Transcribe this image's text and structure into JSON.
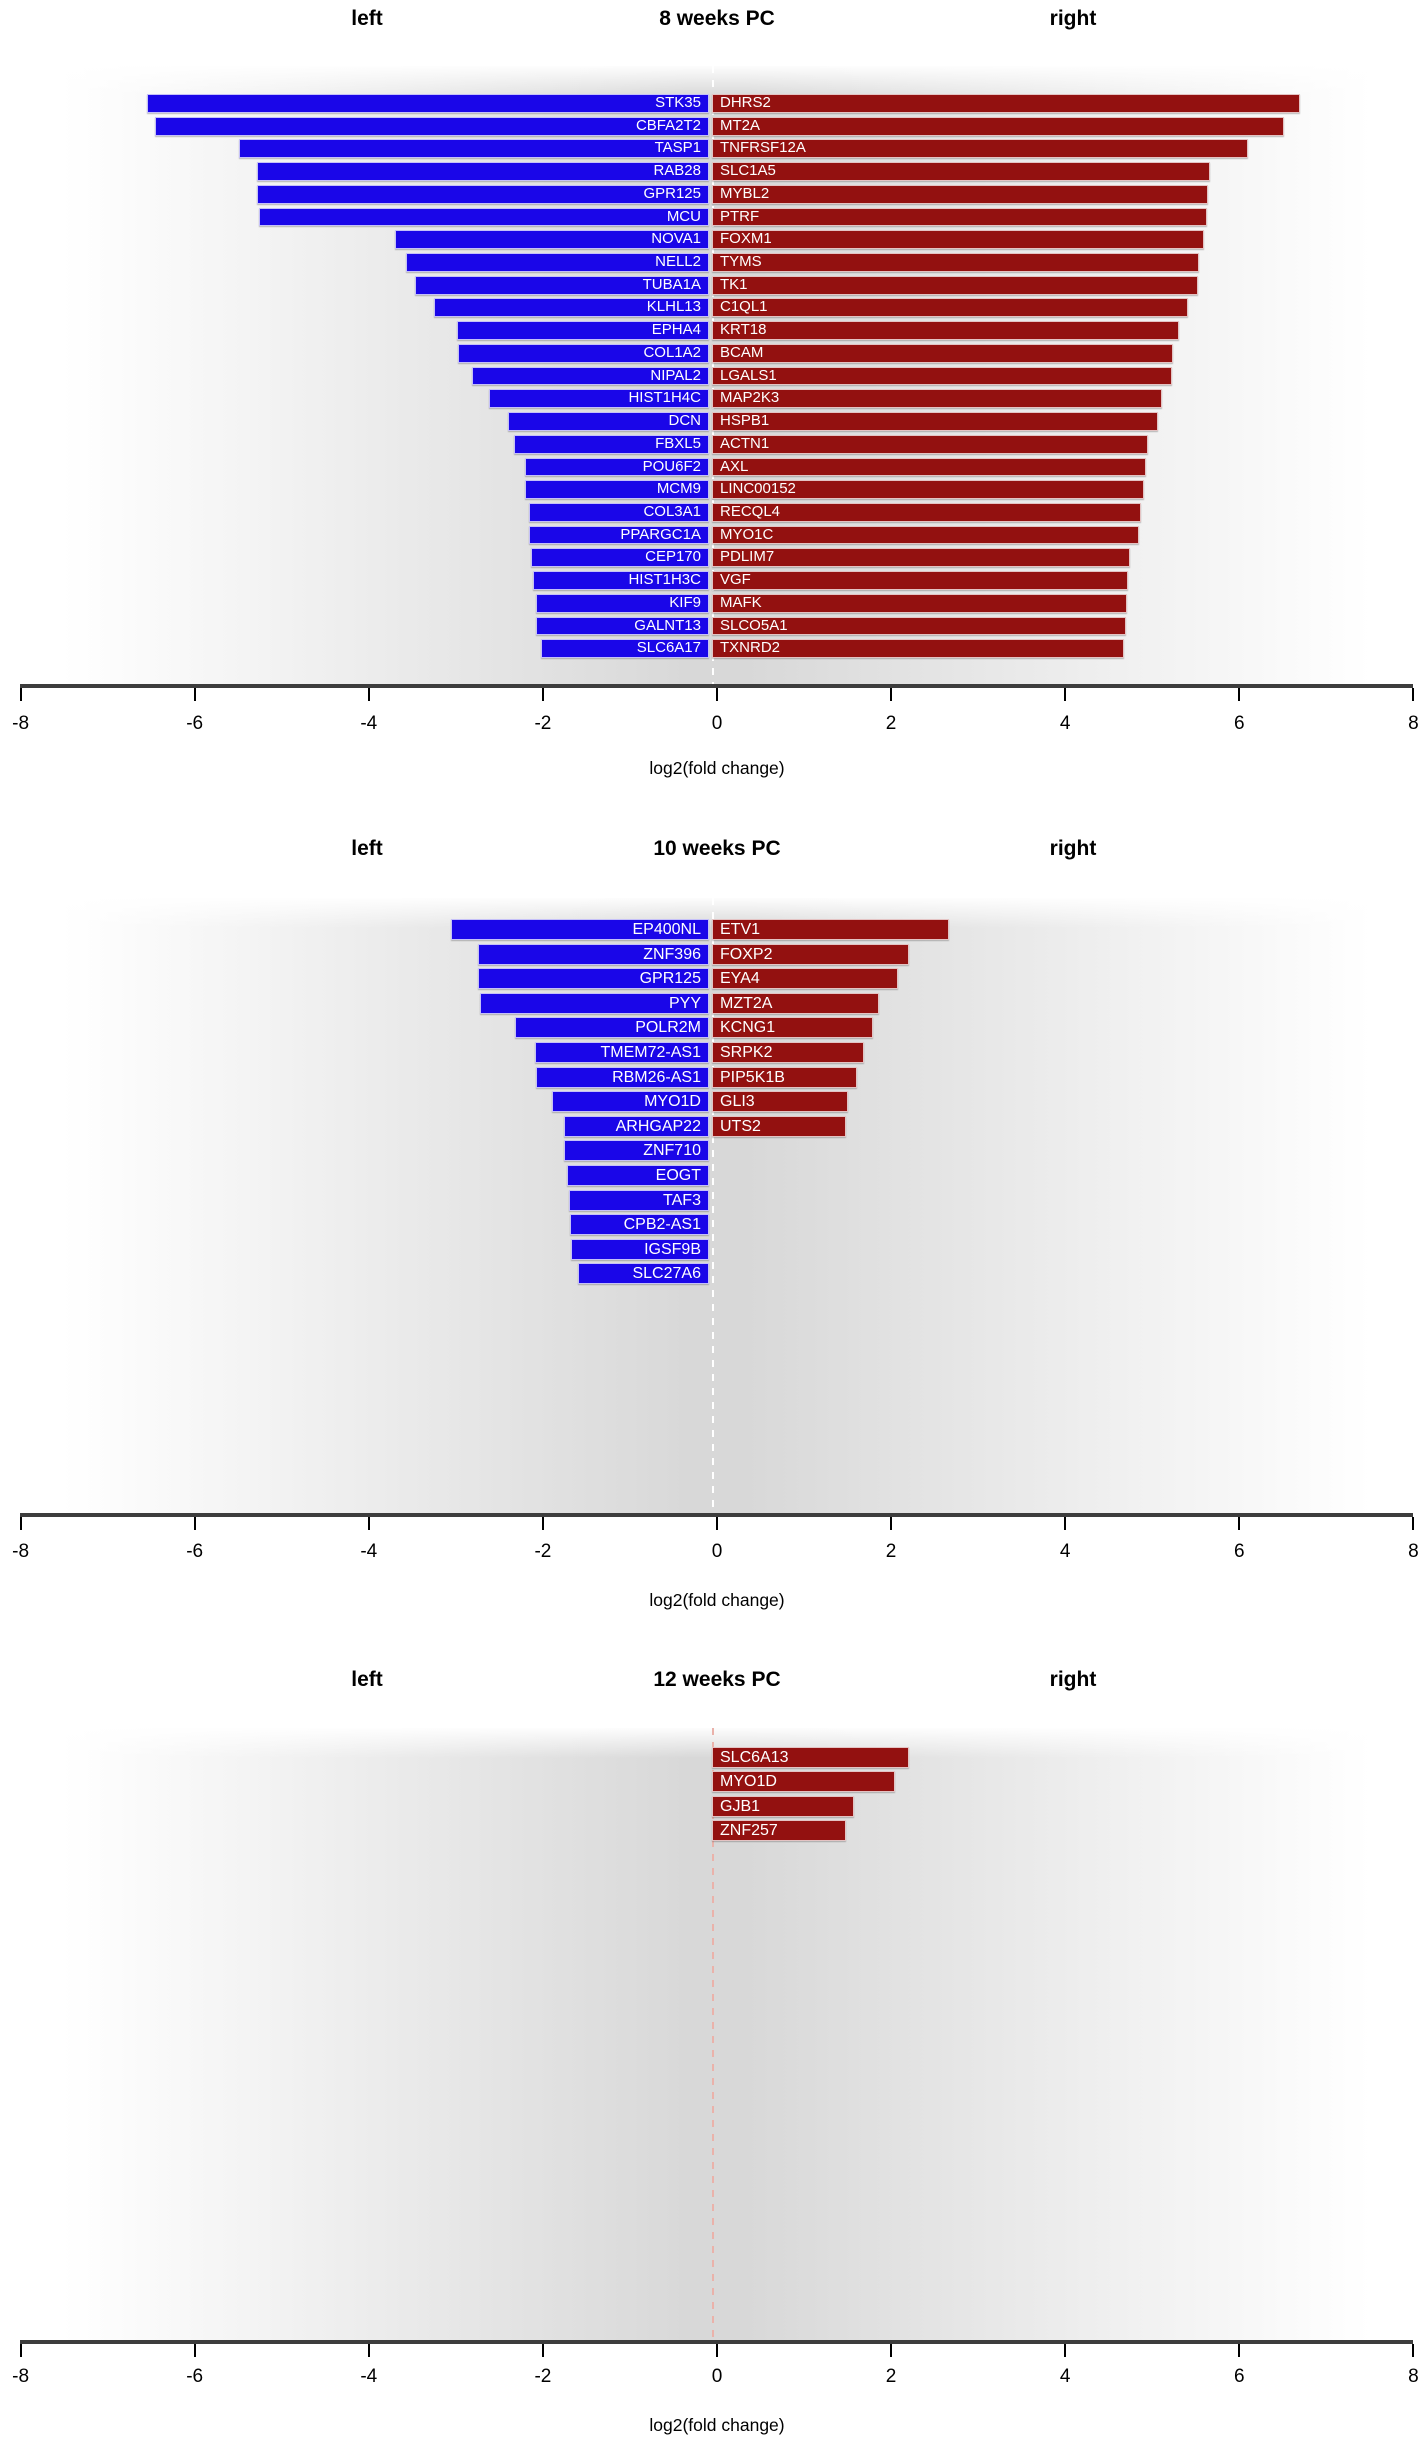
{
  "axis": {
    "ticks": [
      -8,
      -6,
      -4,
      -2,
      0,
      2,
      4,
      6,
      8
    ],
    "xlim": [
      -8,
      8
    ],
    "xlabel": "log2(fold change)"
  },
  "colors": {
    "left_bar": "#1a06e8",
    "right_bar": "#931110",
    "axis_line": "#3d3d3d",
    "center_line_white": "#ffffff",
    "center_line_pink": "#eab2aa",
    "plot_bg_center": "#d8d8d8"
  },
  "chart_data": [
    {
      "type": "bar",
      "orientation": "diverging-horizontal",
      "title": "8 weeks PC",
      "left_header": "left",
      "right_header": "right",
      "xlabel": "log2(fold change)",
      "xlim": [
        -8,
        8
      ],
      "center_line": "#ffffff",
      "rows": [
        {
          "left_gene": "STK35",
          "left_value": -6.55,
          "right_gene": "DHRS2",
          "right_value": 6.7
        },
        {
          "left_gene": "CBFA2T2",
          "left_value": -6.46,
          "right_gene": "MT2A",
          "right_value": 6.51
        },
        {
          "left_gene": "TASP1",
          "left_value": -5.49,
          "right_gene": "TNFRSF12A",
          "right_value": 6.1
        },
        {
          "left_gene": "RAB28",
          "left_value": -5.29,
          "right_gene": "SLC1A5",
          "right_value": 5.66
        },
        {
          "left_gene": "GPR125",
          "left_value": -5.29,
          "right_gene": "MYBL2",
          "right_value": 5.64
        },
        {
          "left_gene": "MCU",
          "left_value": -5.26,
          "right_gene": "PTRF",
          "right_value": 5.63
        },
        {
          "left_gene": "NOVA1",
          "left_value": -3.7,
          "right_gene": "FOXM1",
          "right_value": 5.6
        },
        {
          "left_gene": "NELL2",
          "left_value": -3.57,
          "right_gene": "TYMS",
          "right_value": 5.54
        },
        {
          "left_gene": "TUBA1A",
          "left_value": -3.47,
          "right_gene": "TK1",
          "right_value": 5.52
        },
        {
          "left_gene": "KLHL13",
          "left_value": -3.25,
          "right_gene": "C1QL1",
          "right_value": 5.41
        },
        {
          "left_gene": "EPHA4",
          "left_value": -2.99,
          "right_gene": "KRT18",
          "right_value": 5.31
        },
        {
          "left_gene": "COL1A2",
          "left_value": -2.97,
          "right_gene": "BCAM",
          "right_value": 5.24
        },
        {
          "left_gene": "NIPAL2",
          "left_value": -2.82,
          "right_gene": "LGALS1",
          "right_value": 5.23
        },
        {
          "left_gene": "HIST1H4C",
          "left_value": -2.62,
          "right_gene": "MAP2K3",
          "right_value": 5.11
        },
        {
          "left_gene": "DCN",
          "left_value": -2.4,
          "right_gene": "HSPB1",
          "right_value": 5.07
        },
        {
          "left_gene": "FBXL5",
          "left_value": -2.33,
          "right_gene": "ACTN1",
          "right_value": 4.95
        },
        {
          "left_gene": "POU6F2",
          "left_value": -2.21,
          "right_gene": "AXL",
          "right_value": 4.93
        },
        {
          "left_gene": "MCM9",
          "left_value": -2.2,
          "right_gene": "LINC00152",
          "right_value": 4.9
        },
        {
          "left_gene": "COL3A1",
          "left_value": -2.16,
          "right_gene": "RECQL4",
          "right_value": 4.87
        },
        {
          "left_gene": "PPARGC1A",
          "left_value": -2.16,
          "right_gene": "MYO1C",
          "right_value": 4.85
        },
        {
          "left_gene": "CEP170",
          "left_value": -2.14,
          "right_gene": "PDLIM7",
          "right_value": 4.74
        },
        {
          "left_gene": "HIST1H3C",
          "left_value": -2.11,
          "right_gene": "VGF",
          "right_value": 4.72
        },
        {
          "left_gene": "KIF9",
          "left_value": -2.08,
          "right_gene": "MAFK",
          "right_value": 4.71
        },
        {
          "left_gene": "GALNT13",
          "left_value": -2.08,
          "right_gene": "SLCO5A1",
          "right_value": 4.7
        },
        {
          "left_gene": "SLC6A17",
          "left_value": -2.02,
          "right_gene": "TXNRD2",
          "right_value": 4.68
        }
      ]
    },
    {
      "type": "bar",
      "orientation": "diverging-horizontal",
      "title": "10 weeks PC",
      "left_header": "left",
      "right_header": "right",
      "xlabel": "log2(fold change)",
      "xlim": [
        -8,
        8
      ],
      "center_line": "#ffffff",
      "rows": [
        {
          "left_gene": "EP400NL",
          "left_value": -3.05,
          "right_gene": "ETV1",
          "right_value": 2.67
        },
        {
          "left_gene": "ZNF396",
          "left_value": -2.75,
          "right_gene": "FOXP2",
          "right_value": 2.21
        },
        {
          "left_gene": "GPR125",
          "left_value": -2.74,
          "right_gene": "EYA4",
          "right_value": 2.08
        },
        {
          "left_gene": "PYY",
          "left_value": -2.72,
          "right_gene": "MZT2A",
          "right_value": 1.86
        },
        {
          "left_gene": "POLR2M",
          "left_value": -2.32,
          "right_gene": "KCNG1",
          "right_value": 1.79
        },
        {
          "left_gene": "TMEM72-AS1",
          "left_value": -2.09,
          "right_gene": "SRPK2",
          "right_value": 1.69
        },
        {
          "left_gene": "RBM26-AS1",
          "left_value": -2.08,
          "right_gene": "PIP5K1B",
          "right_value": 1.61
        },
        {
          "left_gene": "MYO1D",
          "left_value": -1.89,
          "right_gene": "GLI3",
          "right_value": 1.51
        },
        {
          "left_gene": "ARHGAP22",
          "left_value": -1.76,
          "right_gene": "UTS2",
          "right_value": 1.48
        },
        {
          "left_gene": "ZNF710",
          "left_value": -1.76,
          "right_gene": null,
          "right_value": null
        },
        {
          "left_gene": "EOGT",
          "left_value": -1.72,
          "right_gene": null,
          "right_value": null
        },
        {
          "left_gene": "TAF3",
          "left_value": -1.7,
          "right_gene": null,
          "right_value": null
        },
        {
          "left_gene": "CPB2-AS1",
          "left_value": -1.69,
          "right_gene": null,
          "right_value": null
        },
        {
          "left_gene": "IGSF9B",
          "left_value": -1.68,
          "right_gene": null,
          "right_value": null
        },
        {
          "left_gene": "SLC27A6",
          "left_value": -1.6,
          "right_gene": null,
          "right_value": null
        }
      ]
    },
    {
      "type": "bar",
      "orientation": "diverging-horizontal",
      "title": "12 weeks PC",
      "left_header": "left",
      "right_header": "right",
      "xlabel": "log2(fold change)",
      "xlim": [
        -8,
        8
      ],
      "center_line": "#eab2aa",
      "rows": [
        {
          "left_gene": null,
          "left_value": null,
          "right_gene": "SLC6A13",
          "right_value": 2.2
        },
        {
          "left_gene": null,
          "left_value": null,
          "right_gene": "MYO1D",
          "right_value": 2.05
        },
        {
          "left_gene": null,
          "left_value": null,
          "right_gene": "GJB1",
          "right_value": 1.57
        },
        {
          "left_gene": null,
          "left_value": null,
          "right_gene": "ZNF257",
          "right_value": 1.48
        }
      ]
    }
  ]
}
